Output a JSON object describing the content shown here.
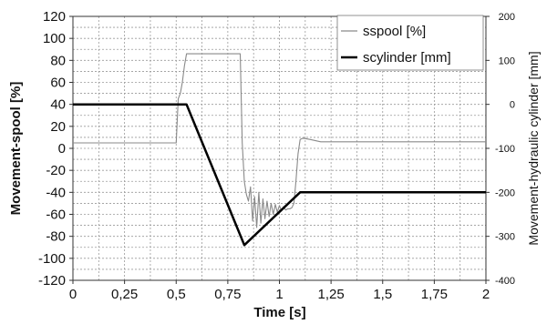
{
  "chart_data": {
    "type": "line",
    "xlabel": "Time [s]",
    "ylabel_left": "Movement-spool [%]",
    "ylabel_right": "Movement-hydraulic cylinder [mm]",
    "xlim": [
      0,
      2
    ],
    "ylim_left": [
      -120,
      120
    ],
    "ylim_right": [
      -400,
      200
    ],
    "grid": true,
    "legend_position": "top-right",
    "x_ticks": [
      "0",
      "0,25",
      "0,5",
      "0,75",
      "1",
      "1,25",
      "1,5",
      "1,75",
      "2"
    ],
    "y_ticks_left": [
      "120",
      "100",
      "80",
      "60",
      "40",
      "20",
      "0",
      "-20",
      "-40",
      "-60",
      "-80",
      "-100",
      "-120"
    ],
    "y_ticks_right": [
      "200",
      "100",
      "0",
      "-100",
      "-200",
      "-300",
      "-400"
    ],
    "series": [
      {
        "name": "sspool [%]",
        "axis": "left",
        "color": "#8a8a8a",
        "x": [
          0,
          0.5,
          0.51,
          0.52,
          0.53,
          0.54,
          0.55,
          0.8,
          0.81,
          0.82,
          0.83,
          0.84,
          0.85,
          0.86,
          0.87,
          0.88,
          0.89,
          0.9,
          0.91,
          0.92,
          0.93,
          0.94,
          0.95,
          0.96,
          0.97,
          0.98,
          0.99,
          1.0,
          1.01,
          1.02,
          1.03,
          1.04,
          1.05,
          1.06,
          1.07,
          1.08,
          1.09,
          1.1,
          1.11,
          1.12,
          1.15,
          1.2,
          2
        ],
        "y": [
          5,
          5,
          45,
          50,
          60,
          75,
          86,
          86,
          86,
          5,
          -30,
          -42,
          -48,
          -35,
          -66,
          -44,
          -72,
          -40,
          -68,
          -46,
          -64,
          -48,
          -62,
          -50,
          -60,
          -51,
          -58,
          -52,
          -57,
          -53,
          -56,
          -55,
          -55,
          -54,
          -50,
          -30,
          -5,
          8,
          9,
          9,
          8,
          6,
          6
        ]
      },
      {
        "name": "scylinder [mm]",
        "axis": "right",
        "color": "#000000",
        "x": [
          0,
          0.55,
          0.83,
          1.1,
          2
        ],
        "y": [
          0,
          0,
          -320,
          -200,
          -200
        ]
      }
    ]
  }
}
